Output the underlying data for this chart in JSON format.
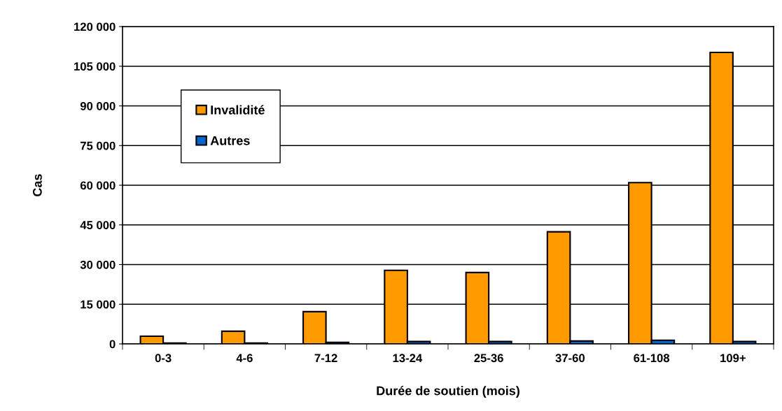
{
  "chart_data": {
    "type": "bar",
    "xlabel": "Durée de soutien (mois)",
    "ylabel": "Cas",
    "categories": [
      "0-3",
      "4-6",
      "7-12",
      "13-24",
      "25-36",
      "37-60",
      "61-108",
      "109+"
    ],
    "series": [
      {
        "name": "Invalidité",
        "color": "#ff9900",
        "values": [
          2900,
          4800,
          12200,
          27800,
          27000,
          42400,
          61000,
          110200
        ]
      },
      {
        "name": "Autres",
        "color": "#0066cc",
        "values": [
          300,
          300,
          600,
          900,
          900,
          1100,
          1400,
          900
        ]
      }
    ],
    "ylim": [
      0,
      120000
    ],
    "yticks": [
      0,
      {
        "value": 15000,
        "label": "15 000"
      },
      {
        "value": 30000,
        "label": "30 000"
      },
      {
        "value": 45000,
        "label": "45 000"
      },
      {
        "value": 60000,
        "label": "60 000"
      },
      {
        "value": 75000,
        "label": "75 000"
      },
      {
        "value": 90000,
        "label": "90 000"
      },
      {
        "value": 105000,
        "label": "105 000"
      },
      {
        "value": 120000,
        "label": "120 000"
      }
    ],
    "grid": "y",
    "legend": "top left"
  }
}
